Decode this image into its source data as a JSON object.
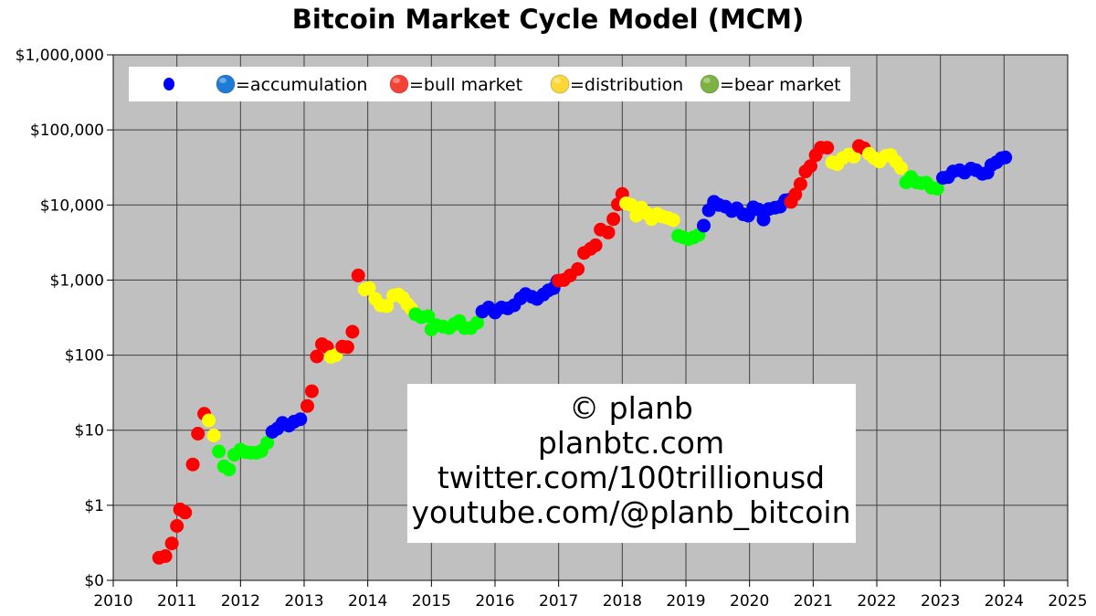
{
  "chart_data": {
    "type": "scatter",
    "title": "Bitcoin Market Cycle Model (MCM)",
    "xlabel": "",
    "ylabel": "",
    "x_scale": "linear",
    "y_scale": "log",
    "xlim": [
      2010,
      2025
    ],
    "ylim": [
      0.1,
      1000000
    ],
    "grid": true,
    "plot_background": "#c0c0c0",
    "x_ticks": [
      "2010",
      "2011",
      "2012",
      "2013",
      "2014",
      "2015",
      "2016",
      "2017",
      "2018",
      "2019",
      "2020",
      "2021",
      "2022",
      "2023",
      "2024",
      "2025"
    ],
    "y_ticks": [
      {
        "value": 0.1,
        "label": "$0"
      },
      {
        "value": 1,
        "label": "$1"
      },
      {
        "value": 10,
        "label": "$10"
      },
      {
        "value": 100,
        "label": "$100"
      },
      {
        "value": 1000,
        "label": "$1,000"
      },
      {
        "value": 10000,
        "label": "$10,000"
      },
      {
        "value": 100000,
        "label": "$100,000"
      },
      {
        "value": 1000000,
        "label": "$1,000,000"
      }
    ],
    "legend": {
      "position": "top-left inside",
      "entries": [
        {
          "label": "",
          "color": "#0000ff",
          "marker": "small-dot"
        },
        {
          "label": "=accumulation",
          "color": "#1e7bd8",
          "marker": "emoji-circle"
        },
        {
          "label": "=bull market",
          "color": "#f44336",
          "marker": "emoji-circle"
        },
        {
          "label": "=distribution",
          "color": "#fdd835",
          "marker": "emoji-circle"
        },
        {
          "label": "=bear market",
          "color": "#7cb342",
          "marker": "emoji-circle"
        }
      ]
    },
    "phase_colors": {
      "accumulation": "#0000ff",
      "bull": "#ff0000",
      "distribution": "#ffff00",
      "bear": "#00ff00"
    },
    "series": [
      {
        "name": "bull",
        "points": [
          [
            2010.72,
            0.2
          ],
          [
            2010.82,
            0.21
          ],
          [
            2010.92,
            0.31
          ],
          [
            2011.0,
            0.53
          ],
          [
            2011.05,
            0.88
          ],
          [
            2011.13,
            0.8
          ],
          [
            2011.25,
            3.5
          ],
          [
            2011.33,
            9
          ],
          [
            2011.43,
            16.5
          ],
          [
            2013.05,
            21
          ],
          [
            2013.12,
            33
          ],
          [
            2013.2,
            96
          ],
          [
            2013.28,
            140
          ],
          [
            2013.36,
            128
          ],
          [
            2013.6,
            130
          ],
          [
            2013.68,
            128
          ],
          [
            2013.76,
            205
          ],
          [
            2013.85,
            1150
          ],
          [
            2017.0,
            980
          ],
          [
            2017.08,
            1000
          ],
          [
            2017.18,
            1150
          ],
          [
            2017.3,
            1400
          ],
          [
            2017.4,
            2300
          ],
          [
            2017.5,
            2600
          ],
          [
            2017.58,
            2900
          ],
          [
            2017.66,
            4700
          ],
          [
            2017.78,
            4300
          ],
          [
            2017.86,
            6500
          ],
          [
            2017.93,
            10200
          ],
          [
            2018.0,
            14000
          ],
          [
            2020.65,
            11000
          ],
          [
            2020.72,
            13800
          ],
          [
            2020.8,
            19000
          ],
          [
            2020.88,
            28000
          ],
          [
            2020.96,
            33000
          ],
          [
            2021.04,
            46000
          ],
          [
            2021.12,
            58000
          ],
          [
            2021.22,
            58000
          ],
          [
            2021.72,
            61000
          ],
          [
            2021.8,
            57000
          ]
        ]
      },
      {
        "name": "distribution",
        "points": [
          [
            2011.5,
            13.5
          ],
          [
            2011.58,
            8.5
          ],
          [
            2013.42,
            95
          ],
          [
            2013.5,
            100
          ],
          [
            2013.95,
            750
          ],
          [
            2014.02,
            780
          ],
          [
            2014.12,
            560
          ],
          [
            2014.2,
            460
          ],
          [
            2014.3,
            450
          ],
          [
            2014.4,
            620
          ],
          [
            2014.48,
            640
          ],
          [
            2014.55,
            580
          ],
          [
            2014.62,
            480
          ],
          [
            2014.68,
            420
          ],
          [
            2018.06,
            10500
          ],
          [
            2018.14,
            10000
          ],
          [
            2018.22,
            7200
          ],
          [
            2018.3,
            9200
          ],
          [
            2018.38,
            7800
          ],
          [
            2018.46,
            6500
          ],
          [
            2018.55,
            7600
          ],
          [
            2018.63,
            7000
          ],
          [
            2018.72,
            6700
          ],
          [
            2018.8,
            6300
          ],
          [
            2021.3,
            37000
          ],
          [
            2021.38,
            35000
          ],
          [
            2021.46,
            42000
          ],
          [
            2021.56,
            47000
          ],
          [
            2021.64,
            44000
          ],
          [
            2021.88,
            48000
          ],
          [
            2021.96,
            42000
          ],
          [
            2022.04,
            38000
          ],
          [
            2022.14,
            45000
          ],
          [
            2022.22,
            46000
          ],
          [
            2022.3,
            38000
          ],
          [
            2022.38,
            31000
          ]
        ]
      },
      {
        "name": "bear",
        "points": [
          [
            2011.66,
            5.2
          ],
          [
            2011.74,
            3.3
          ],
          [
            2011.82,
            3.0
          ],
          [
            2011.9,
            4.7
          ],
          [
            2012.0,
            5.5
          ],
          [
            2012.08,
            5.1
          ],
          [
            2012.16,
            5.0
          ],
          [
            2012.25,
            5.0
          ],
          [
            2012.33,
            5.3
          ],
          [
            2012.42,
            6.8
          ],
          [
            2014.75,
            350
          ],
          [
            2014.84,
            320
          ],
          [
            2014.95,
            330
          ],
          [
            2015.0,
            220
          ],
          [
            2015.08,
            250
          ],
          [
            2015.18,
            240
          ],
          [
            2015.28,
            230
          ],
          [
            2015.36,
            260
          ],
          [
            2015.44,
            285
          ],
          [
            2015.52,
            230
          ],
          [
            2015.62,
            230
          ],
          [
            2015.72,
            270
          ],
          [
            2018.88,
            3900
          ],
          [
            2018.96,
            3700
          ],
          [
            2019.04,
            3500
          ],
          [
            2019.12,
            3700
          ],
          [
            2019.2,
            4000
          ],
          [
            2022.46,
            20000
          ],
          [
            2022.54,
            23500
          ],
          [
            2022.62,
            20000
          ],
          [
            2022.7,
            19500
          ],
          [
            2022.78,
            19800
          ],
          [
            2022.86,
            17000
          ],
          [
            2022.95,
            16500
          ]
        ]
      },
      {
        "name": "accumulation",
        "points": [
          [
            2012.5,
            9.5
          ],
          [
            2012.58,
            10.5
          ],
          [
            2012.66,
            12.5
          ],
          [
            2012.76,
            11.5
          ],
          [
            2012.84,
            13
          ],
          [
            2012.94,
            14
          ],
          [
            2015.8,
            380
          ],
          [
            2015.9,
            430
          ],
          [
            2016.0,
            370
          ],
          [
            2016.1,
            430
          ],
          [
            2016.2,
            420
          ],
          [
            2016.3,
            460
          ],
          [
            2016.4,
            570
          ],
          [
            2016.48,
            650
          ],
          [
            2016.58,
            600
          ],
          [
            2016.66,
            560
          ],
          [
            2016.76,
            640
          ],
          [
            2016.84,
            730
          ],
          [
            2016.92,
            780
          ],
          [
            2016.98,
            970
          ],
          [
            2019.28,
            5300
          ],
          [
            2019.36,
            8500
          ],
          [
            2019.44,
            11000
          ],
          [
            2019.52,
            10000
          ],
          [
            2019.62,
            9500
          ],
          [
            2019.72,
            8300
          ],
          [
            2019.8,
            9000
          ],
          [
            2019.9,
            7500
          ],
          [
            2019.98,
            7200
          ],
          [
            2020.06,
            9300
          ],
          [
            2020.14,
            8700
          ],
          [
            2020.22,
            6400
          ],
          [
            2020.3,
            8800
          ],
          [
            2020.4,
            9200
          ],
          [
            2020.48,
            9500
          ],
          [
            2020.56,
            11500
          ],
          [
            2020.62,
            11700
          ],
          [
            2023.04,
            23000
          ],
          [
            2023.12,
            23500
          ],
          [
            2023.2,
            28000
          ],
          [
            2023.3,
            29000
          ],
          [
            2023.38,
            27000
          ],
          [
            2023.48,
            30500
          ],
          [
            2023.56,
            29000
          ],
          [
            2023.66,
            26000
          ],
          [
            2023.74,
            27000
          ],
          [
            2023.8,
            34000
          ],
          [
            2023.88,
            37000
          ],
          [
            2023.96,
            42000
          ],
          [
            2024.02,
            43000
          ]
        ]
      }
    ],
    "annotation": {
      "lines": [
        "© planb",
        "planbtc.com",
        "twitter.com/100trillionusd",
        "youtube.com/@planb_bitcoin"
      ]
    }
  }
}
